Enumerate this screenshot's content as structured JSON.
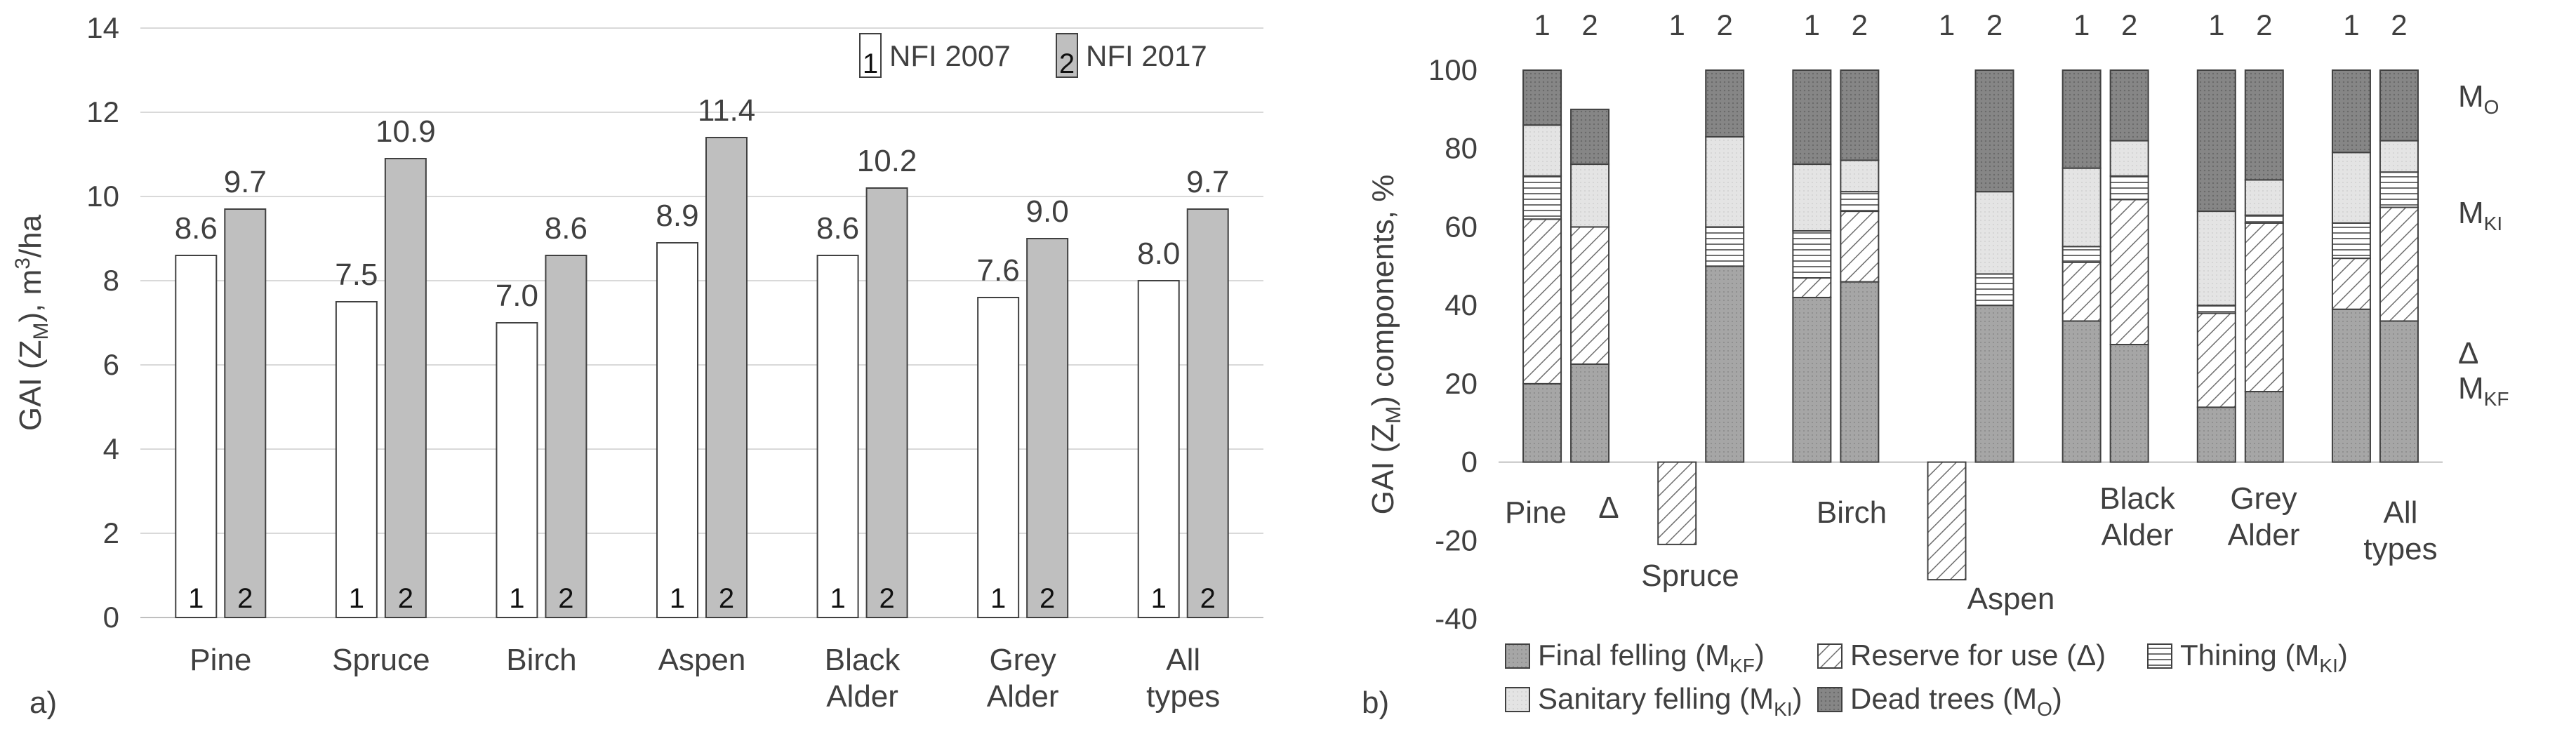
{
  "chart_data": [
    {
      "type": "bar",
      "panel_label": "a)",
      "categories": [
        "Pine",
        "Spruce",
        "Birch",
        "Aspen",
        "Black Alder",
        "Grey Alder",
        "All types"
      ],
      "series": [
        {
          "name": "NFI 2007",
          "marker": "1",
          "color": "#ffffff",
          "values": [
            8.6,
            7.5,
            7.0,
            8.9,
            8.6,
            7.6,
            8.0
          ],
          "labels": [
            "8.6",
            "7.5",
            "7.0",
            "8.9",
            "8.6",
            "7.6",
            "8.0"
          ]
        },
        {
          "name": "NFI 2017",
          "marker": "2",
          "color": "#bfbfbf",
          "values": [
            9.7,
            10.9,
            8.6,
            11.4,
            10.2,
            9.0,
            9.7
          ],
          "labels": [
            "9.7",
            "10.9",
            "8.6",
            "11.4",
            "10.2",
            "9.0",
            "9.7"
          ]
        }
      ],
      "ylabel": "GAI (Z_M), m³/ha",
      "ylim": [
        0,
        14
      ],
      "yticks": [
        "0",
        "2",
        "4",
        "6",
        "8",
        "10",
        "12",
        "14"
      ],
      "grid": true,
      "legend_position": "top-right"
    },
    {
      "type": "stacked-bar",
      "panel_label": "b)",
      "categories": [
        "Pine",
        "Spruce",
        "Birch",
        "Aspen",
        "Black Alder",
        "Grey Alder",
        "All types"
      ],
      "bar_markers": [
        "1",
        "2"
      ],
      "components": [
        {
          "key": "final",
          "name": "Final felling (M",
          "sub": "KF",
          "pattern": "dots",
          "side_label": "M",
          "side_sub": "KF"
        },
        {
          "key": "reserve",
          "name": "Reserve for use (Δ)",
          "sub": "",
          "pattern": "diag",
          "side_label": "Δ",
          "side_sub": ""
        },
        {
          "key": "thinning",
          "name": "Thining (M",
          "sub": "KI",
          "pattern": "horiz",
          "side_label": "",
          "side_sub": ""
        },
        {
          "key": "sanitary",
          "name": "Sanitary felling (M",
          "sub": "KI",
          "pattern": "light",
          "side_label": "M",
          "side_sub": "KI"
        },
        {
          "key": "dead",
          "name": "Dead trees (M",
          "sub": "O",
          "pattern": "dark",
          "side_label": "M",
          "side_sub": "O"
        }
      ],
      "groups": [
        {
          "category": "Pine",
          "bars": [
            {
              "final": 20,
              "reserve": 42,
              "thinning": 11,
              "sanitary": 13,
              "dead": 14
            },
            {
              "final": 25,
              "reserve": 35,
              "thinning": 0,
              "sanitary": 16,
              "dead": 14
            }
          ]
        },
        {
          "category": "Spruce",
          "bars": [
            {
              "final": 0,
              "reserve": -21,
              "thinning": 0,
              "sanitary": 0,
              "dead": 0
            },
            {
              "final": 50,
              "reserve": 0,
              "thinning": 10,
              "sanitary": 23,
              "dead": 17
            }
          ]
        },
        {
          "category": "Birch",
          "bars": [
            {
              "final": 42,
              "reserve": 5,
              "thinning": 12,
              "sanitary": 17,
              "dead": 24
            },
            {
              "final": 46,
              "reserve": 18,
              "thinning": 5,
              "sanitary": 8,
              "dead": 23
            }
          ]
        },
        {
          "category": "Aspen",
          "bars": [
            {
              "final": 0,
              "reserve": -30,
              "thinning": 0,
              "sanitary": 0,
              "dead": 0
            },
            {
              "final": 40,
              "reserve": 0,
              "thinning": 8,
              "sanitary": 21,
              "dead": 31
            }
          ]
        },
        {
          "category": "Black Alder",
          "bars": [
            {
              "final": 36,
              "reserve": 15,
              "thinning": 4,
              "sanitary": 20,
              "dead": 25
            },
            {
              "final": 30,
              "reserve": 37,
              "thinning": 6,
              "sanitary": 9,
              "dead": 18
            }
          ]
        },
        {
          "category": "Grey Alder",
          "bars": [
            {
              "final": 14,
              "reserve": 24,
              "thinning": 2,
              "sanitary": 24,
              "dead": 36
            },
            {
              "final": 18,
              "reserve": 43,
              "thinning": 2,
              "sanitary": 9,
              "dead": 28
            }
          ]
        },
        {
          "category": "All types",
          "bars": [
            {
              "final": 39,
              "reserve": 13,
              "thinning": 9,
              "sanitary": 18,
              "dead": 21
            },
            {
              "final": 36,
              "reserve": 29,
              "thinning": 9,
              "sanitary": 8,
              "dead": 18
            }
          ]
        }
      ],
      "ylabel": "GAI (Z_M) components, %",
      "ylim": [
        -40,
        100
      ],
      "yticks": [
        "-40",
        "-20",
        "0",
        "20",
        "40",
        "60",
        "80",
        "100"
      ],
      "legend_position": "bottom"
    }
  ]
}
